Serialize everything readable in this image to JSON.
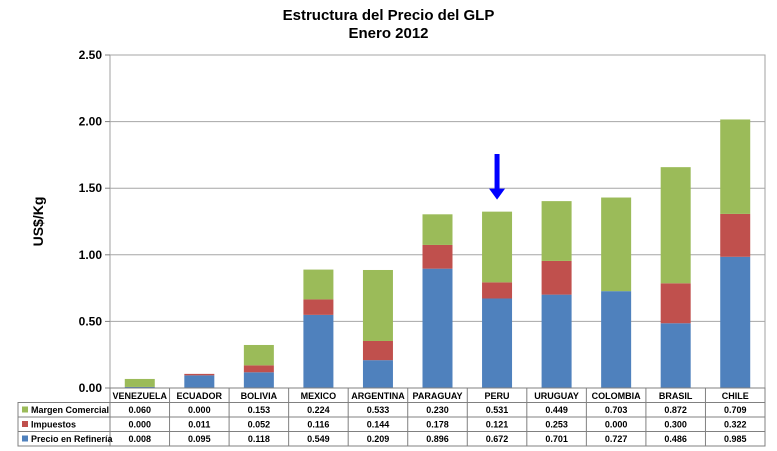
{
  "chart_data": {
    "type": "bar",
    "stacked": true,
    "title": "Estructura del Precio del GLP",
    "subtitle": "Enero 2012",
    "ylabel": "US$/Kg",
    "ylim": [
      0,
      2.5
    ],
    "yticks": [
      "0.00",
      "0.50",
      "1.00",
      "1.50",
      "2.00",
      "2.50"
    ],
    "grid": true,
    "categories": [
      "VENEZUELA",
      "ECUADOR",
      "BOLIVIA",
      "MEXICO",
      "ARGENTINA",
      "PARAGUAY",
      "PERU",
      "URUGUAY",
      "COLOMBIA",
      "BRASIL",
      "CHILE"
    ],
    "series": [
      {
        "name": "Margen Comercial",
        "color": "#9bbb59",
        "values": [
          0.06,
          0.0,
          0.153,
          0.224,
          0.533,
          0.23,
          0.531,
          0.449,
          0.703,
          0.872,
          0.709
        ],
        "labels": [
          "0.060",
          "0.000",
          "0.153",
          "0.224",
          "0.533",
          "0.230",
          "0.531",
          "0.449",
          "0.703",
          "0.872",
          "0.709"
        ]
      },
      {
        "name": "Impuestos",
        "color": "#c0504d",
        "values": [
          0.0,
          0.011,
          0.052,
          0.116,
          0.144,
          0.178,
          0.121,
          0.253,
          0.0,
          0.3,
          0.322
        ],
        "labels": [
          "0.000",
          "0.011",
          "0.052",
          "0.116",
          "0.144",
          "0.178",
          "0.121",
          "0.253",
          "0.000",
          "0.300",
          "0.322"
        ]
      },
      {
        "name": "Precio en Refinería",
        "color": "#4f81bd",
        "values": [
          0.008,
          0.095,
          0.118,
          0.549,
          0.209,
          0.896,
          0.672,
          0.701,
          0.727,
          0.486,
          0.985
        ],
        "labels": [
          "0.008",
          "0.095",
          "0.118",
          "0.549",
          "0.209",
          "0.896",
          "0.672",
          "0.701",
          "0.727",
          "0.486",
          "0.985"
        ]
      }
    ],
    "annotation": {
      "type": "arrow",
      "category": "PERU",
      "color": "#0000ff"
    },
    "legend": "data-table-below"
  }
}
